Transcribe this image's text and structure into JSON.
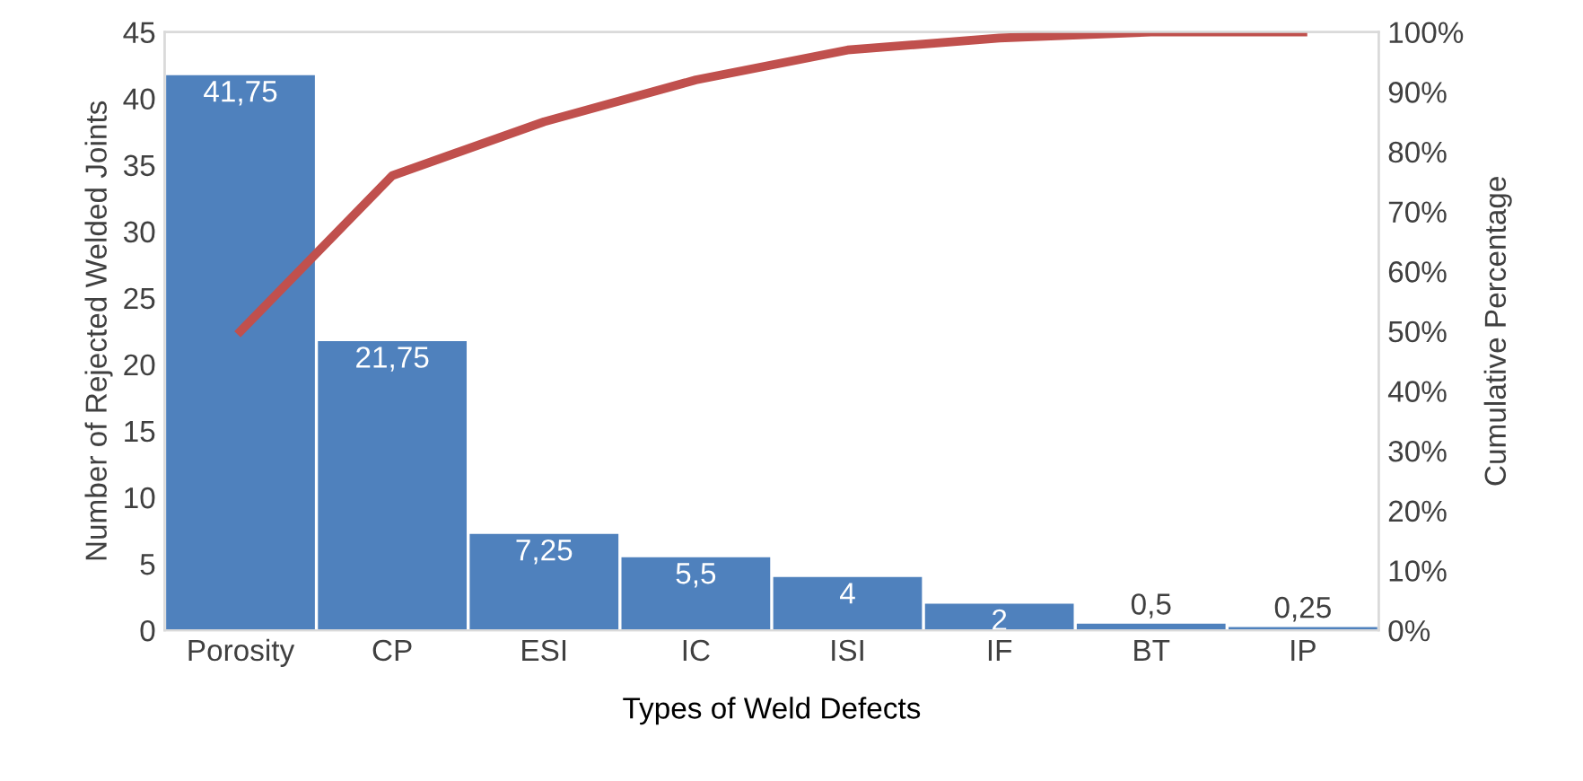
{
  "chart_data": {
    "type": "bar",
    "xlabel": "Types of Weld Defects",
    "ylabel": "Number of Rejected Welded Joints",
    "y2label": "Cumulative Percentage",
    "categories": [
      "Porosity",
      "CP",
      "ESI",
      "IC",
      "ISI",
      "IF",
      "BT",
      "IP"
    ],
    "series": [
      {
        "color": "#4f81bd",
        "values": [
          41.75,
          21.75,
          7.25,
          5.5,
          4,
          2,
          0.5,
          0.25
        ],
        "value_labels": [
          "41,75",
          "21,75",
          "7,25",
          "5,5",
          "4",
          "2",
          "0,5",
          "0,25"
        ]
      },
      {
        "type": "line",
        "axis": "y2",
        "color": "#c0504d",
        "values": [
          50,
          76,
          85,
          92,
          97,
          99,
          100,
          100
        ]
      }
    ],
    "ylim": [
      0,
      45
    ],
    "yticks": [
      0,
      5,
      10,
      15,
      20,
      25,
      30,
      35,
      40,
      45
    ],
    "y2lim": [
      0,
      100
    ],
    "y2ticks": [
      {
        "value": 0,
        "label": "0%"
      },
      {
        "value": 10,
        "label": "10%"
      },
      {
        "value": 20,
        "label": "20%"
      },
      {
        "value": 30,
        "label": "30%"
      },
      {
        "value": 40,
        "label": "40%"
      },
      {
        "value": 50,
        "label": "50%"
      },
      {
        "value": 60,
        "label": "60%"
      },
      {
        "value": 70,
        "label": "70%"
      },
      {
        "value": 80,
        "label": "80%"
      },
      {
        "value": 90,
        "label": "90%"
      },
      {
        "value": 100,
        "label": "100%"
      }
    ],
    "grid": false,
    "legend": false,
    "marker": "none",
    "line_style": "solid"
  }
}
